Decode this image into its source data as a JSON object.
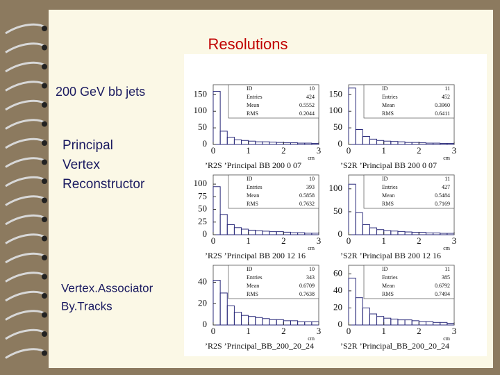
{
  "slide": {
    "title": "Resolutions",
    "texts": [
      "200 GeV bb jets",
      "Principal",
      "Vertex",
      "Reconstructor",
      "Vertex.Associator",
      "By.Tracks"
    ]
  },
  "stat_labels": [
    "ID",
    "Entries",
    "Mean",
    "RMS"
  ],
  "x_unit": "cm",
  "panels": [
    {
      "caption": "’R2S ’Principal BB 200 0 07",
      "stats": [
        "10",
        "424",
        "0.5552",
        "0.2044"
      ],
      "xlim": [
        0,
        3
      ],
      "xticks": [
        0,
        1,
        2,
        3
      ],
      "ylim": [
        0,
        180
      ],
      "yticks": [
        0,
        50,
        100,
        150
      ],
      "bins": [
        0,
        0.2,
        0.4,
        0.6,
        0.8,
        1,
        1.2,
        1.4,
        1.6,
        1.8,
        2,
        2.2,
        2.4,
        2.6,
        2.8,
        3
      ],
      "counts": [
        160,
        40,
        22,
        14,
        12,
        10,
        8,
        8,
        7,
        6,
        5,
        5,
        4,
        4,
        3
      ]
    },
    {
      "caption": "’S2R ’Principal BB 200 0 07",
      "stats": [
        "11",
        "452",
        "0.3960",
        "0.6411"
      ],
      "xlim": [
        0,
        3
      ],
      "xticks": [
        0,
        1,
        2,
        3
      ],
      "ylim": [
        0,
        180
      ],
      "yticks": [
        0,
        50,
        100,
        150
      ],
      "bins": [
        0,
        0.2,
        0.4,
        0.6,
        0.8,
        1,
        1.2,
        1.4,
        1.6,
        1.8,
        2,
        2.2,
        2.4,
        2.6,
        2.8,
        3
      ],
      "counts": [
        170,
        45,
        24,
        16,
        12,
        10,
        9,
        8,
        6,
        6,
        5,
        4,
        4,
        3,
        3
      ]
    },
    {
      "caption": "’R2S ’Principal BB 200 12 16",
      "stats": [
        "10",
        "393",
        "0.5858",
        "0.7632"
      ],
      "xlim": [
        0,
        3
      ],
      "xticks": [
        0,
        1,
        2,
        3
      ],
      "ylim": [
        0,
        118
      ],
      "yticks": [
        0,
        25,
        50,
        75,
        100
      ],
      "bins": [
        0,
        0.2,
        0.4,
        0.6,
        0.8,
        1,
        1.2,
        1.4,
        1.6,
        1.8,
        2,
        2.2,
        2.4,
        2.6,
        2.8,
        3
      ],
      "counts": [
        95,
        40,
        20,
        14,
        11,
        9,
        8,
        7,
        6,
        6,
        5,
        4,
        4,
        3,
        3
      ]
    },
    {
      "caption": "’S2R ’Principal BB 200 12 16",
      "stats": [
        "11",
        "427",
        "0.5484",
        "0.7169"
      ],
      "xlim": [
        0,
        3
      ],
      "xticks": [
        0,
        1,
        2,
        3
      ],
      "ylim": [
        0,
        130
      ],
      "yticks": [
        0,
        50,
        100
      ],
      "bins": [
        0,
        0.2,
        0.4,
        0.6,
        0.8,
        1,
        1.2,
        1.4,
        1.6,
        1.8,
        2,
        2.2,
        2.4,
        2.6,
        2.8,
        3
      ],
      "counts": [
        110,
        48,
        22,
        15,
        11,
        9,
        8,
        7,
        6,
        5,
        5,
        4,
        4,
        3,
        3
      ]
    },
    {
      "caption": "’R2S ’Principal_BB_200_20_24",
      "stats": [
        "10",
        "343",
        "0.6709",
        "0.7638"
      ],
      "xlim": [
        0,
        3
      ],
      "xticks": [
        0,
        1,
        2,
        3
      ],
      "ylim": [
        0,
        56
      ],
      "yticks": [
        0,
        20,
        40
      ],
      "bins": [
        0,
        0.2,
        0.4,
        0.6,
        0.8,
        1,
        1.2,
        1.4,
        1.6,
        1.8,
        2,
        2.2,
        2.4,
        2.6,
        2.8,
        3
      ],
      "counts": [
        42,
        30,
        18,
        12,
        9,
        8,
        7,
        6,
        5,
        5,
        4,
        4,
        3,
        3,
        3
      ]
    },
    {
      "caption": "’S2R ’Principal_BB_200_20_24",
      "stats": [
        "11",
        "385",
        "0.6792",
        "0.7494"
      ],
      "xlim": [
        0,
        3
      ],
      "xticks": [
        0,
        1,
        2,
        3
      ],
      "ylim": [
        0,
        70
      ],
      "yticks": [
        0,
        20,
        40,
        60
      ],
      "bins": [
        0,
        0.2,
        0.4,
        0.6,
        0.8,
        1,
        1.2,
        1.4,
        1.6,
        1.8,
        2,
        2.2,
        2.4,
        2.6,
        2.8,
        3
      ],
      "counts": [
        55,
        32,
        20,
        13,
        10,
        8,
        7,
        6,
        6,
        5,
        4,
        4,
        3,
        3,
        2
      ]
    }
  ]
}
